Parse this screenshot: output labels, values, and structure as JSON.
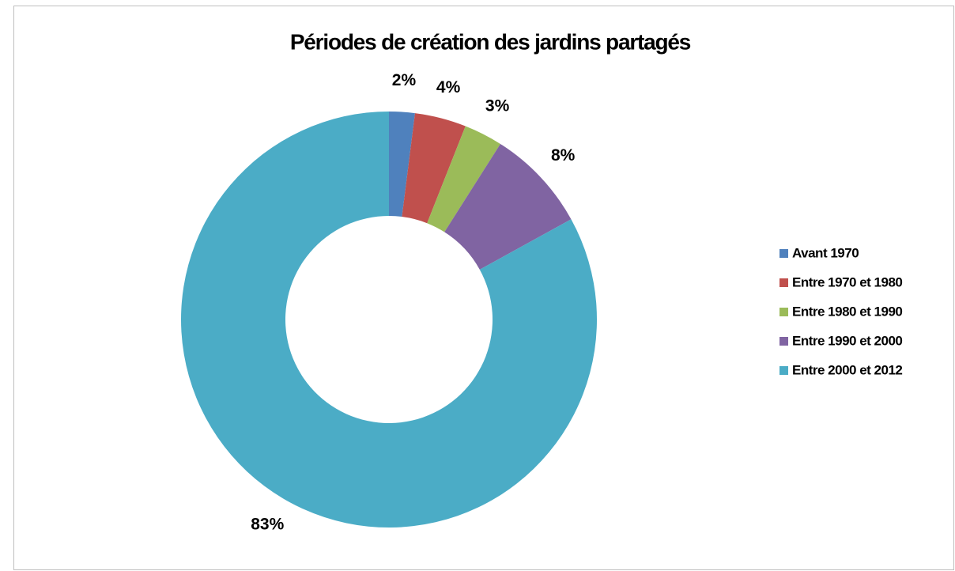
{
  "chart_data": {
    "type": "donut",
    "title": "Périodes de création des jardins partagés",
    "categories": [
      "Avant 1970",
      "Entre 1970 et 1980",
      "Entre 1980 et 1990",
      "Entre 1990 et 2000",
      "Entre 2000 et 2012"
    ],
    "values": [
      2,
      4,
      3,
      8,
      83
    ],
    "value_labels": [
      "2%",
      "4%",
      "3%",
      "8%",
      "83%"
    ],
    "colors": [
      "#4f81bd",
      "#c0504d",
      "#9bbb59",
      "#8064a2",
      "#4bacc6"
    ],
    "legend": "right"
  }
}
